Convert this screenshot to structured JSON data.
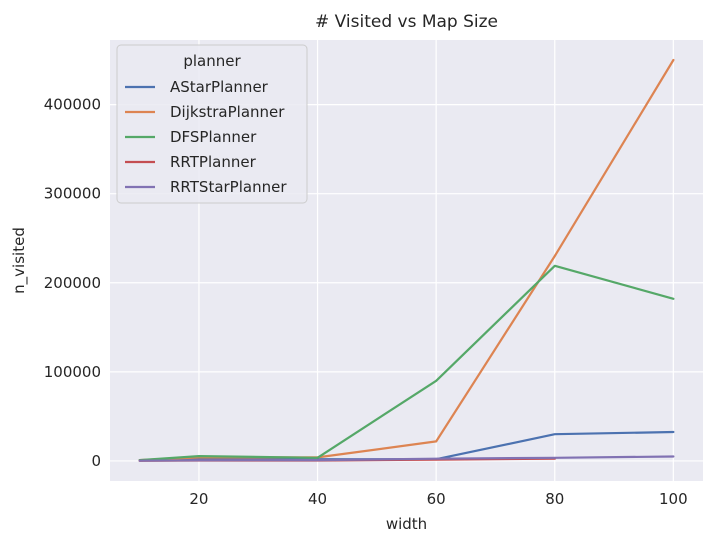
{
  "chart_data": {
    "type": "line",
    "title": "# Visited vs Map Size",
    "xlabel": "width",
    "ylabel": "n_visited",
    "xlim": [
      5,
      105
    ],
    "ylim": [
      -22500,
      472500
    ],
    "x_ticks": [
      20,
      40,
      60,
      80,
      100
    ],
    "x_tick_labels": [
      "20",
      "40",
      "60",
      "80",
      "100"
    ],
    "y_ticks": [
      0,
      100000,
      200000,
      300000,
      400000
    ],
    "y_tick_labels": [
      "0",
      "100000",
      "200000",
      "300000",
      "400000"
    ],
    "grid": true,
    "background": "#eaeaf2",
    "legend": {
      "title": "planner",
      "placement": "top-left"
    },
    "series": [
      {
        "name": "AStarPlanner",
        "color": "#4c72b0",
        "x": [
          10,
          20,
          40,
          60,
          80,
          100
        ],
        "y": [
          500,
          2500,
          2000,
          2000,
          30000,
          32500
        ]
      },
      {
        "name": "DijkstraPlanner",
        "color": "#dd8452",
        "x": [
          10,
          20,
          40,
          60,
          80,
          100
        ],
        "y": [
          1000,
          4000,
          4000,
          22000,
          230000,
          450000
        ]
      },
      {
        "name": "DFSPlanner",
        "color": "#55a868",
        "x": [
          10,
          20,
          40,
          60,
          80,
          100
        ],
        "y": [
          1000,
          5500,
          3500,
          90000,
          219000,
          182000
        ]
      },
      {
        "name": "RRTPlanner",
        "color": "#c44e52",
        "x": [
          10,
          20,
          40,
          60,
          80
        ],
        "y": [
          200,
          500,
          500,
          1500,
          2500
        ]
      },
      {
        "name": "RRTStarPlanner",
        "color": "#8172b3",
        "x": [
          10,
          20,
          40,
          60,
          80,
          100
        ],
        "y": [
          300,
          700,
          1000,
          2500,
          3500,
          5000
        ]
      }
    ]
  }
}
